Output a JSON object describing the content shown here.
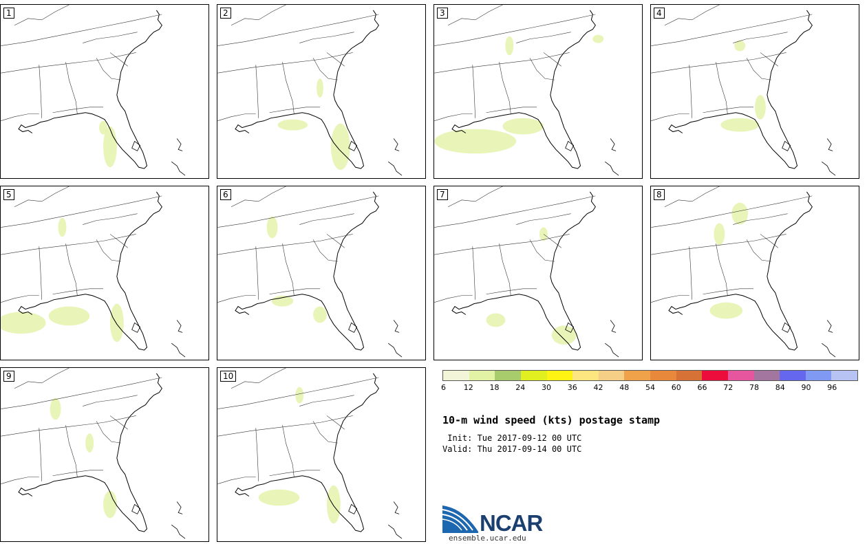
{
  "title": "10-m wind speed (kts) postage stamp",
  "init_line": " Init: Tue 2017-09-12 00 UTC",
  "valid_line": "Valid: Thu 2017-09-14 00 UTC",
  "logo_text": "NCAR",
  "logo_url": "ensemble.ucar.edu",
  "panels": [
    {
      "label": "1"
    },
    {
      "label": "2"
    },
    {
      "label": "3"
    },
    {
      "label": "4"
    },
    {
      "label": "5"
    },
    {
      "label": "6"
    },
    {
      "label": "7"
    },
    {
      "label": "8"
    },
    {
      "label": "9"
    },
    {
      "label": "10"
    }
  ],
  "colorbar": {
    "ticks": [
      "6",
      "12",
      "18",
      "24",
      "30",
      "36",
      "42",
      "48",
      "54",
      "60",
      "66",
      "72",
      "78",
      "84",
      "90",
      "96"
    ],
    "colors": [
      "#f3f5d8",
      "#e3f3a6",
      "#a8cc6c",
      "#e1ee20",
      "#fff314",
      "#fde67f",
      "#f6cf87",
      "#efa24a",
      "#e7883a",
      "#d77236",
      "#ec0d3c",
      "#e5569f",
      "#a2769f",
      "#6567ee",
      "#8099f3",
      "#b6c3f3"
    ]
  }
}
